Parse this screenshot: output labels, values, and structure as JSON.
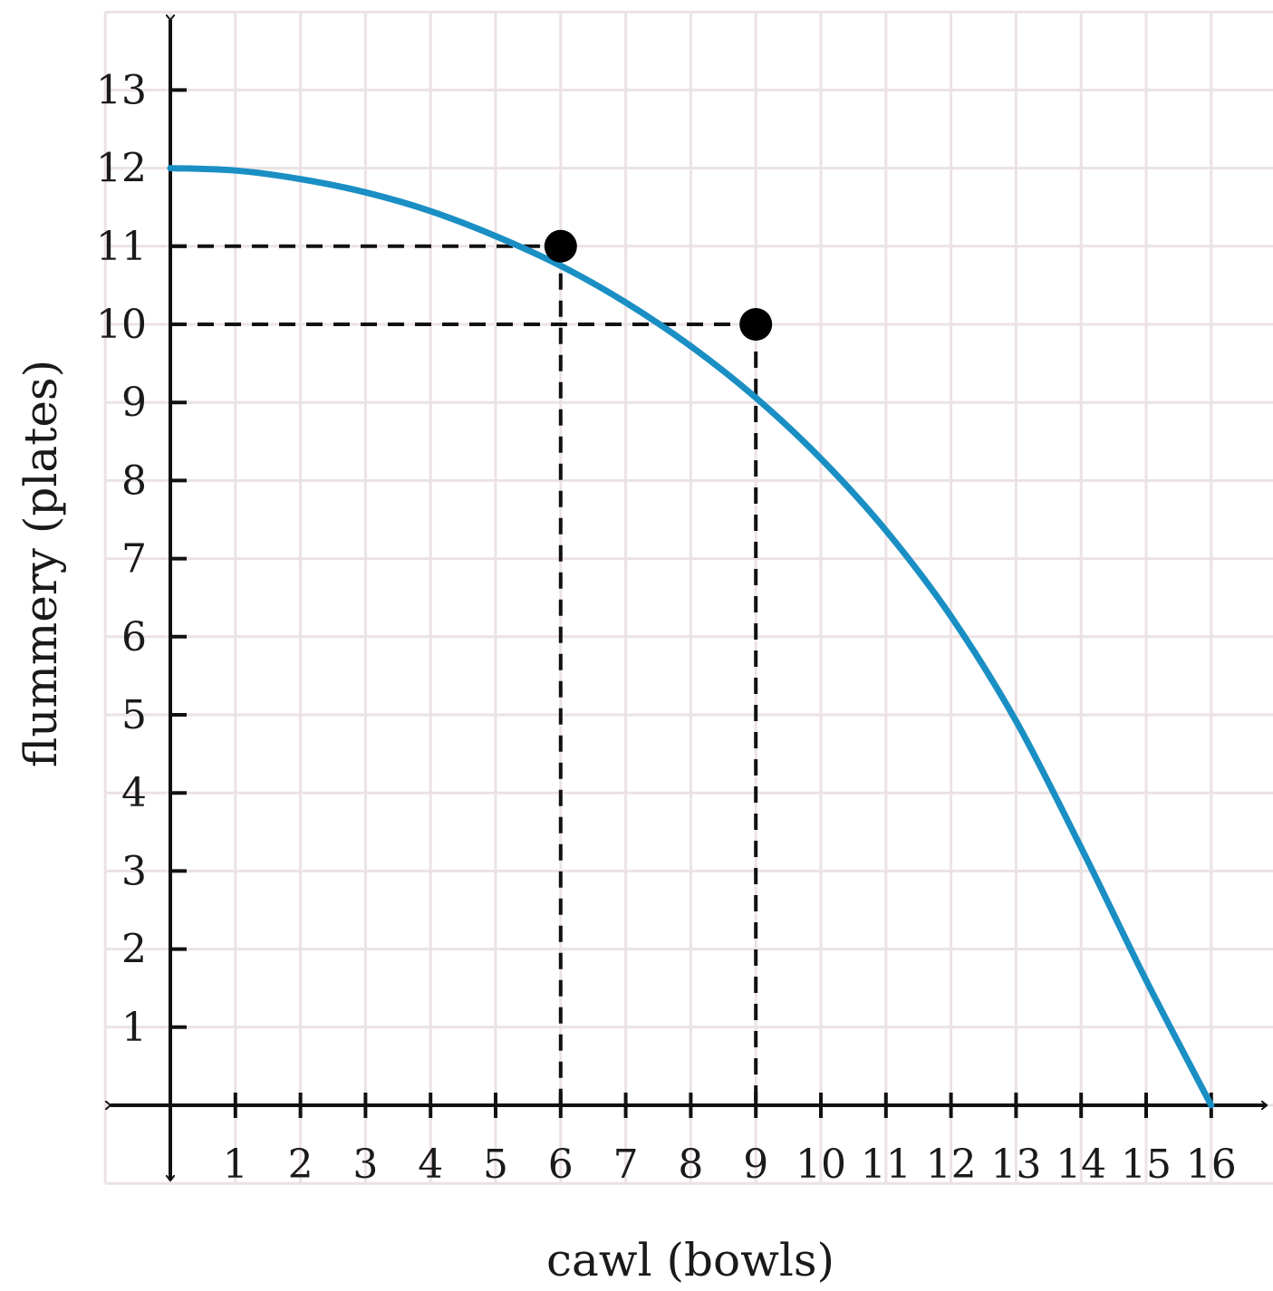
{
  "chart_data": {
    "type": "line",
    "title": "",
    "xlabel": "cawl (bowls)",
    "ylabel": "flummery (plates)",
    "xlim": [
      -1,
      17
    ],
    "ylim": [
      -1,
      14
    ],
    "grid": true,
    "x_ticks": [
      1,
      2,
      3,
      4,
      5,
      6,
      7,
      8,
      9,
      10,
      11,
      12,
      13,
      14,
      15,
      16
    ],
    "y_ticks": [
      1,
      2,
      3,
      4,
      5,
      6,
      7,
      8,
      9,
      10,
      11,
      12,
      13
    ],
    "series": [
      {
        "x": [
          0,
          1,
          2,
          3,
          4,
          5,
          6,
          7,
          8,
          9,
          10,
          11,
          12,
          13,
          14,
          15,
          16
        ],
        "values": [
          12,
          11.97,
          11.86,
          11.69,
          11.45,
          11.13,
          10.75,
          10.28,
          9.72,
          9.06,
          8.28,
          7.36,
          6.26,
          4.92,
          3.3,
          1.6,
          0
        ],
        "color": "#1a8fc4"
      }
    ],
    "highlight_points": [
      {
        "x": 6,
        "y": 11
      },
      {
        "x": 9,
        "y": 10
      }
    ],
    "colors": {
      "curve": "#1a8fc4",
      "grid": "#ece2e4",
      "axis": "#111111",
      "point": "#000000",
      "guide": "#111111"
    }
  }
}
